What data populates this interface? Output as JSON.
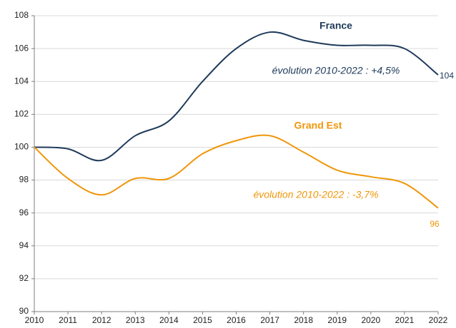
{
  "chart_data": {
    "type": "line",
    "x": [
      2010,
      2011,
      2012,
      2013,
      2014,
      2015,
      2016,
      2017,
      2018,
      2019,
      2020,
      2021,
      2022
    ],
    "xlim": [
      2010,
      2022
    ],
    "xticks": [
      2010,
      2011,
      2012,
      2013,
      2014,
      2015,
      2016,
      2017,
      2018,
      2019,
      2020,
      2021,
      2022
    ],
    "ylim": [
      90,
      108
    ],
    "yticks": [
      90,
      92,
      94,
      96,
      98,
      100,
      102,
      104,
      106,
      108
    ],
    "grid": true,
    "series": [
      {
        "name": "France",
        "color": "#1f3a5a",
        "values": [
          100,
          99.9,
          99.2,
          100.7,
          101.6,
          104.0,
          106.0,
          107.0,
          106.5,
          106.2,
          106.2,
          106.0,
          104.4
        ],
        "value_labels": {
          "12": "104"
        }
      },
      {
        "name": "Grand Est",
        "color": "#f0960a",
        "values": [
          100,
          98.1,
          97.1,
          98.1,
          98.1,
          99.6,
          100.4,
          100.7,
          99.7,
          98.6,
          98.2,
          97.8,
          96.3
        ],
        "value_labels": {
          "12": "96"
        }
      }
    ],
    "annotations": [
      "évolution 2010-2022 : +4,5%",
      "évolution 2010-2022 : -3,7%"
    ]
  }
}
